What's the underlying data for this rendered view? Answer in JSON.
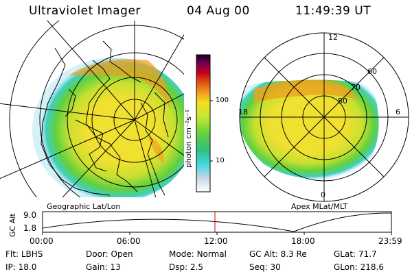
{
  "header": {
    "instrument": "Ultraviolet Imager",
    "date": "04 Aug 00",
    "time": "11:49:39 UT"
  },
  "colorbar": {
    "ticks": [
      "100",
      "10"
    ],
    "unit_label": "photon cm⁻²s⁻¹"
  },
  "geo_map": {
    "caption": "Geographic Lat/Lon"
  },
  "polar_plot": {
    "caption": "Apex MLat/MLT",
    "mlt_labels": {
      "top": "12",
      "left": "18",
      "right": "6",
      "bottom": "0"
    },
    "lat_labels": [
      "60",
      "70",
      "80"
    ]
  },
  "altitude_plot": {
    "ylabel": "GC Alt",
    "yticks": [
      "9.0",
      "1.8"
    ],
    "xticks": [
      "00:00",
      "06:00",
      "12:00",
      "18:00",
      "23:59"
    ],
    "marker_color": "#cc0000"
  },
  "footer": {
    "row1": [
      {
        "label": "Flt:",
        "value": "LBHS"
      },
      {
        "label": "Door:",
        "value": "Open"
      },
      {
        "label": "Mode:",
        "value": "Normal"
      },
      {
        "label": "GC Alt:",
        "value": "8.3 Re"
      },
      {
        "label": "GLat:",
        "value": "71.7"
      }
    ],
    "row2": [
      {
        "label": "IP:",
        "value": "18.0"
      },
      {
        "label": "Gain:",
        "value": "13"
      },
      {
        "label": "Dsp:",
        "value": "2.5"
      },
      {
        "label": "Seq:",
        "value": "30"
      },
      {
        "label": "GLon:",
        "value": "218.6"
      }
    ]
  }
}
